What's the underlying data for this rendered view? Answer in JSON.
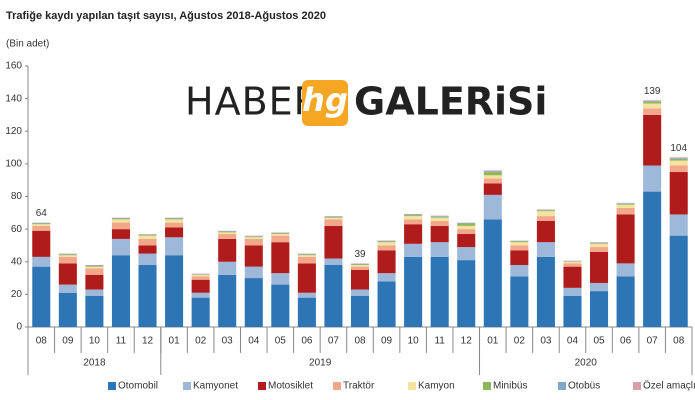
{
  "watermark": {
    "left": "HABER",
    "logo": "hg",
    "right": "GALERiSi"
  },
  "chart_data": {
    "type": "stacked-bar",
    "title": "Trafiğe kaydı yapılan taşıt sayısı, Ağustos 2018-Ağustos 2020",
    "y_label": "(Bin adet)",
    "groups": [
      {
        "label": "2018",
        "categories": [
          "08",
          "09",
          "10",
          "11",
          "12"
        ]
      },
      {
        "label": "2019",
        "categories": [
          "01",
          "02",
          "03",
          "04",
          "05",
          "06",
          "07",
          "08",
          "09",
          "10",
          "11",
          "12"
        ]
      },
      {
        "label": "2020",
        "categories": [
          "01",
          "02",
          "03",
          "04",
          "05",
          "06",
          "07",
          "08"
        ]
      }
    ],
    "ylim": [
      0,
      160
    ],
    "yticks": [
      0,
      20,
      40,
      60,
      80,
      100,
      120,
      140,
      160
    ],
    "grid": false,
    "legend": "bottom",
    "series": [
      {
        "name": "Otomobil",
        "color": "#2e75b6",
        "values": [
          37,
          21,
          19,
          44,
          38,
          44,
          18,
          32,
          30,
          26,
          18,
          38,
          19,
          28,
          43,
          43,
          41,
          66,
          31,
          43,
          19,
          22,
          31,
          83,
          56
        ]
      },
      {
        "name": "Kamyonet",
        "color": "#9db8d9",
        "values": [
          6,
          5,
          4,
          10,
          7,
          11,
          3,
          8,
          7,
          7,
          3,
          4,
          4,
          5,
          8,
          9,
          8,
          15,
          7,
          9,
          5,
          5,
          8,
          16,
          13
        ]
      },
      {
        "name": "Motosiklet",
        "color": "#b01c1c",
        "values": [
          16,
          13,
          9,
          6,
          5,
          6,
          8,
          14,
          13,
          19,
          18,
          20,
          12,
          14,
          12,
          10,
          8,
          7,
          9,
          13,
          13,
          19,
          30,
          31,
          26
        ]
      },
      {
        "name": "Traktör",
        "color": "#f2a68a",
        "values": [
          3,
          4,
          4,
          4,
          4,
          3,
          2,
          3,
          4,
          4,
          4,
          4,
          2,
          3,
          3,
          3,
          3,
          3,
          3,
          3,
          2,
          3,
          4,
          4,
          4
        ]
      },
      {
        "name": "Kamyon",
        "color": "#f6e2a0",
        "values": [
          1,
          1,
          1,
          2,
          2,
          2,
          1,
          1,
          1,
          1,
          1,
          1,
          1,
          2,
          2,
          2,
          2,
          2,
          2,
          3,
          1,
          2,
          2,
          3,
          3
        ]
      },
      {
        "name": "Minibüs",
        "color": "#8fb85a",
        "values": [
          0.5,
          0.4,
          0.4,
          0.5,
          0.5,
          0.5,
          0.3,
          0.5,
          0.4,
          0.4,
          0.4,
          0.5,
          0.4,
          0.4,
          0.6,
          0.6,
          1.5,
          2,
          0.5,
          0.6,
          0.3,
          0.4,
          0.6,
          1,
          1
        ]
      },
      {
        "name": "Otobüs",
        "color": "#7fa7c9",
        "values": [
          0.3,
          0.3,
          0.3,
          0.3,
          0.3,
          0.3,
          0.2,
          0.3,
          0.3,
          0.3,
          0.3,
          0.3,
          0.3,
          0.3,
          0.4,
          0.4,
          0.3,
          0.5,
          0.3,
          0.3,
          0.2,
          0.3,
          0.3,
          0.5,
          0.5
        ]
      },
      {
        "name": "Özel amaçlı",
        "color": "#d8a0a8",
        "values": [
          0.2,
          0.3,
          0.3,
          0.2,
          0.2,
          0.2,
          0.2,
          0.2,
          0.3,
          0.3,
          0.3,
          0.2,
          0.3,
          0.3,
          0.3,
          0.3,
          0.2,
          0.5,
          0.2,
          0.2,
          0.2,
          0.3,
          0.2,
          0.5,
          0.5
        ]
      }
    ],
    "total_labels": [
      64,
      null,
      null,
      null,
      null,
      null,
      null,
      null,
      null,
      null,
      null,
      null,
      39,
      null,
      null,
      null,
      null,
      null,
      null,
      null,
      null,
      null,
      null,
      139,
      104
    ]
  }
}
